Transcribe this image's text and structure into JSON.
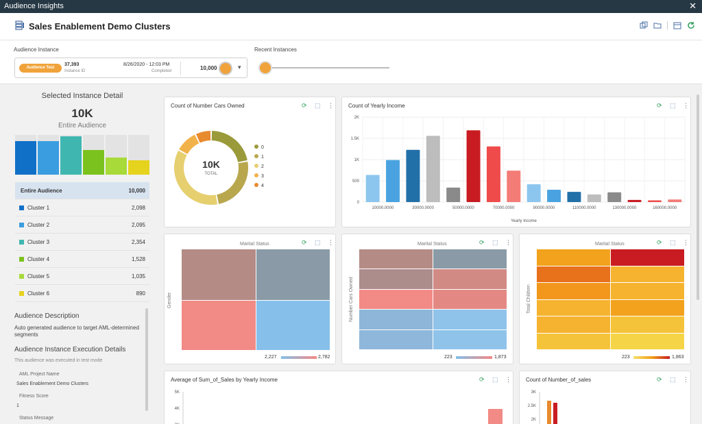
{
  "window": {
    "title": "Audience Insights",
    "close": "✕"
  },
  "header": {
    "title": "Sales Enablement Demo Clusters"
  },
  "instance": {
    "label": "Audience Instance",
    "pill": "Audience Test",
    "id": "37,393",
    "id_label": "Instance ID",
    "date": "8/26/2020 - 12:03 PM",
    "status": "Completed",
    "count": "10,000"
  },
  "recent": {
    "label": "Recent Instances"
  },
  "detail": {
    "title": "Selected Instance Detail",
    "big": "10K",
    "sub": "Entire Audience",
    "rows": [
      {
        "name": "Entire Audience",
        "value": "10,000",
        "color": ""
      },
      {
        "name": "Cluster 1",
        "value": "2,098",
        "color": "#1070c8"
      },
      {
        "name": "Cluster 2",
        "value": "2,095",
        "color": "#3a9de0"
      },
      {
        "name": "Cluster 3",
        "value": "2,354",
        "color": "#3fb7b0"
      },
      {
        "name": "Cluster 4",
        "value": "1,528",
        "color": "#7cc21e"
      },
      {
        "name": "Cluster 5",
        "value": "1,035",
        "color": "#a8da3a"
      },
      {
        "name": "Cluster 6",
        "value": "890",
        "color": "#e5d31e"
      }
    ],
    "desc_title": "Audience Description",
    "desc_text": "Auto generated audience to target AML-determined segments",
    "exec_title": "Audience Instance Execution Details",
    "exec_text": "This audience was executed in test mode",
    "aml_label": "AML Project Name",
    "aml_value": "Sales Enablement Demo Clusters",
    "fit_label": "Fitness Score",
    "fit_value": "1",
    "status_label": "Status Message"
  },
  "cards": {
    "cars": {
      "title": "Count of Number Cars Owned",
      "center": "10K",
      "center_sub": "TOTAL",
      "legend": [
        "0",
        "1",
        "2",
        "3",
        "4"
      ]
    },
    "income": {
      "title": "Count of Yearly Income",
      "xlabel": "Yearly Income"
    },
    "hm1": {
      "xlabel": "Marital Status",
      "ylabel": "Gender",
      "min": "2,227",
      "max": "2,782"
    },
    "hm2": {
      "xlabel": "Marital Status",
      "ylabel": "Number Cars Owned",
      "min": "223",
      "max": "1,873"
    },
    "hm3": {
      "xlabel": "Marital Status",
      "ylabel": "Total Children",
      "min": "223",
      "max": "1,863"
    },
    "avg": {
      "title": "Average of Sum_of_Sales by Yearly Income"
    },
    "cnt": {
      "title": "Count of Number_of_sales"
    }
  },
  "chart_data": [
    {
      "type": "bar",
      "title": "Count of Yearly Income",
      "xlabel": "Yearly Income",
      "ylabel": "",
      "ylim": [
        0,
        2000
      ],
      "yticks": [
        "0",
        "500",
        "1K",
        "1.5K",
        "2K"
      ],
      "xticks": [
        "10000.0000",
        "30000.0000",
        "50000.0000",
        "70000.0000",
        "90000.0000",
        "110000.0000",
        "130000.0000",
        "160000.0000"
      ],
      "values": [
        640,
        990,
        1230,
        1560,
        340,
        1690,
        1310,
        740,
        420,
        290,
        240,
        180,
        230,
        50,
        40,
        60
      ],
      "colors": [
        "#8cc6ee",
        "#4aa3e0",
        "#2270a8",
        "#bdbdbd",
        "#8a8a8a",
        "#c81c22",
        "#ef4b4b",
        "#f47c76",
        "#8cc6ee",
        "#4aa3e0",
        "#2270a8",
        "#bdbdbd",
        "#8a8a8a",
        "#c81c22",
        "#ef4b4b",
        "#f47c76"
      ]
    },
    {
      "type": "pie",
      "title": "Count of Number Cars Owned",
      "categories": [
        "0",
        "1",
        "2",
        "3",
        "4"
      ],
      "values": [
        2200,
        2500,
        3600,
        1000,
        700
      ],
      "colors": [
        "#9a9a3a",
        "#b9a74e",
        "#e6cf6e",
        "#f2b24a",
        "#e88a2e"
      ]
    }
  ]
}
